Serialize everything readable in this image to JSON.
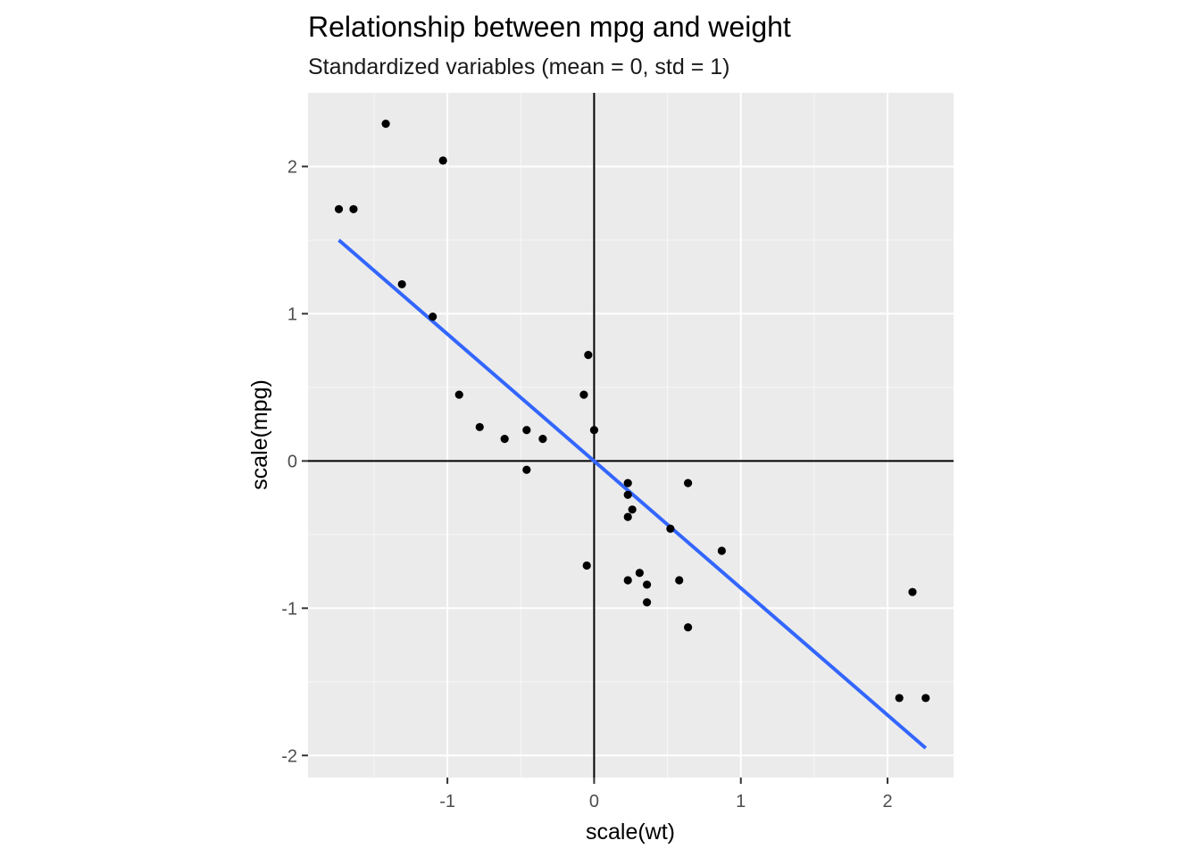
{
  "chart_data": {
    "type": "scatter",
    "title": "Relationship between mpg and weight",
    "subtitle": "Standardized variables (mean = 0, std = 1)",
    "xlabel": "scale(wt)",
    "ylabel": "scale(mpg)",
    "xlim": [
      -1.95,
      2.45
    ],
    "ylim": [
      -2.15,
      2.5
    ],
    "x_ticks": [
      -1,
      0,
      1,
      2
    ],
    "x_tick_labels": [
      "-1",
      "0",
      "1",
      "2"
    ],
    "y_ticks": [
      -2,
      -1,
      0,
      1,
      2
    ],
    "y_tick_labels": [
      "-2",
      "-1",
      "0",
      "1",
      "2"
    ],
    "grid": true,
    "reference_lines": {
      "x": 0,
      "y": 0
    },
    "points": [
      [
        -1.74,
        1.71
      ],
      [
        -1.64,
        1.71
      ],
      [
        -1.42,
        2.29
      ],
      [
        -1.03,
        2.04
      ],
      [
        -1.31,
        1.2
      ],
      [
        -1.1,
        0.98
      ],
      [
        -0.92,
        0.45
      ],
      [
        -0.78,
        0.23
      ],
      [
        -0.61,
        0.15
      ],
      [
        -0.46,
        0.21
      ],
      [
        -0.35,
        0.15
      ],
      [
        -0.46,
        -0.06
      ],
      [
        -0.07,
        0.45
      ],
      [
        -0.04,
        0.72
      ],
      [
        0.0,
        0.21
      ],
      [
        0.23,
        -0.15
      ],
      [
        0.23,
        -0.23
      ],
      [
        0.26,
        -0.33
      ],
      [
        0.23,
        -0.38
      ],
      [
        0.64,
        -0.15
      ],
      [
        0.52,
        -0.46
      ],
      [
        0.87,
        -0.61
      ],
      [
        -0.05,
        -0.71
      ],
      [
        0.23,
        -0.81
      ],
      [
        0.31,
        -0.76
      ],
      [
        0.36,
        -0.84
      ],
      [
        0.36,
        -0.96
      ],
      [
        0.58,
        -0.81
      ],
      [
        0.64,
        -1.13
      ],
      [
        2.17,
        -0.89
      ],
      [
        2.08,
        -1.61
      ],
      [
        2.26,
        -1.61
      ]
    ],
    "fit_line": {
      "x": [
        -1.74,
        2.26
      ],
      "y": [
        1.5,
        -1.95
      ]
    },
    "colors": {
      "panel": "#ebebeb",
      "grid_major": "#ffffff",
      "points": "#000000",
      "fit_line": "#3366ff",
      "reference_lines": "#000000"
    }
  }
}
